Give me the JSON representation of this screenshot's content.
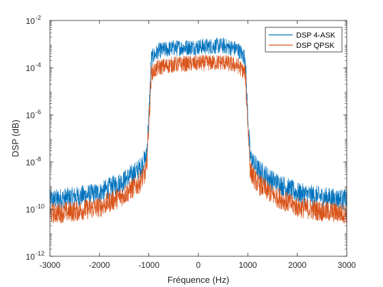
{
  "chart_data": {
    "type": "line",
    "xlabel": "Fréquence (Hz)",
    "ylabel": "DSP (dB)",
    "y_scale": "log",
    "xlim": [
      -3000,
      3000
    ],
    "ylim_exponent": [
      -12,
      -2
    ],
    "x_ticks": [
      "-3000",
      "-2000",
      "-1000",
      "0",
      "1000",
      "2000",
      "3000"
    ],
    "y_ticks": [
      {
        "base": "10",
        "exp": "-12"
      },
      {
        "base": "10",
        "exp": "-10"
      },
      {
        "base": "10",
        "exp": "-8"
      },
      {
        "base": "10",
        "exp": "-6"
      },
      {
        "base": "10",
        "exp": "-4"
      },
      {
        "base": "10",
        "exp": "-2"
      }
    ],
    "grid": false,
    "legend_position": "top-right",
    "series": [
      {
        "name": "DSP 4-ASK",
        "color": "#0072BD",
        "points": [
          [
            -3000,
            3e-10
          ],
          [
            -2500,
            4e-10
          ],
          [
            -2000,
            6e-10
          ],
          [
            -1500,
            2e-09
          ],
          [
            -1200,
            6e-09
          ],
          [
            -1050,
            2e-08
          ],
          [
            -1000,
            1e-06
          ],
          [
            -950,
            0.0003
          ],
          [
            -800,
            0.0006
          ],
          [
            -500,
            0.0008
          ],
          [
            0,
            0.0009
          ],
          [
            500,
            0.001
          ],
          [
            800,
            0.0007
          ],
          [
            950,
            0.0003
          ],
          [
            1000,
            1e-06
          ],
          [
            1050,
            2e-08
          ],
          [
            1200,
            6e-09
          ],
          [
            1500,
            2e-09
          ],
          [
            2000,
            6e-10
          ],
          [
            2500,
            4e-10
          ],
          [
            3000,
            3e-10
          ]
        ]
      },
      {
        "name": "DSP QPSK",
        "color": "#D95319",
        "points": [
          [
            -3000,
            8e-11
          ],
          [
            -2500,
            1e-10
          ],
          [
            -2000,
            1.5e-10
          ],
          [
            -1500,
            5e-10
          ],
          [
            -1200,
            1.5e-09
          ],
          [
            -1050,
            5e-09
          ],
          [
            -1000,
            5e-07
          ],
          [
            -950,
            7e-05
          ],
          [
            -800,
            0.00012
          ],
          [
            -500,
            0.00016
          ],
          [
            0,
            0.00018
          ],
          [
            500,
            0.0002
          ],
          [
            800,
            0.00014
          ],
          [
            950,
            7e-05
          ],
          [
            1000,
            5e-07
          ],
          [
            1050,
            5e-09
          ],
          [
            1200,
            1.5e-09
          ],
          [
            1500,
            5e-10
          ],
          [
            2000,
            1.5e-10
          ],
          [
            2500,
            1e-10
          ],
          [
            3000,
            8e-11
          ]
        ]
      }
    ]
  }
}
